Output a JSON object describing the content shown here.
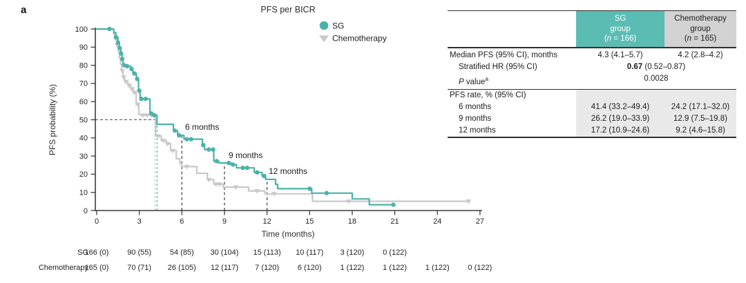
{
  "panel_label": "a",
  "chart_data": {
    "type": "km_step",
    "title": "PFS per BICR",
    "xlabel": "Time (months)",
    "ylabel": "PFS probability (%)",
    "xlim": [
      0,
      27
    ],
    "ylim": [
      0,
      100
    ],
    "xticks": [
      0,
      3,
      6,
      9,
      12,
      15,
      18,
      21,
      24,
      27
    ],
    "yticks": [
      0,
      10,
      20,
      30,
      40,
      50,
      60,
      70,
      80,
      90,
      100
    ],
    "grid": false,
    "legend_position": "top-right",
    "legend": [
      {
        "label": "SG",
        "marker": "circle",
        "color": "#4BB2A9"
      },
      {
        "label": "Chemotherapy",
        "marker": "triangle-down",
        "color": "#C6C6C6"
      }
    ],
    "median_pfs_months": {
      "SG": 4.3,
      "Chemotherapy": 4.2
    },
    "reference": {
      "h50_y": 50,
      "median_lines": [
        {
          "t": 4.1,
          "color": "#BFCFCC"
        },
        {
          "t": 4.25,
          "color": "#4BB2A9"
        }
      ],
      "month_lines": [
        {
          "t": 6,
          "top": 41.4,
          "label": "6 months"
        },
        {
          "t": 9,
          "top": 26.2,
          "label": "9 months"
        },
        {
          "t": 12,
          "top": 17.2,
          "label": "12 months"
        }
      ]
    },
    "series": [
      {
        "name": "Chemotherapy",
        "color": "#C9C9C9",
        "marker": "triangle-down",
        "steps": [
          [
            0,
            100
          ],
          [
            1.2,
            97
          ],
          [
            1.3,
            94
          ],
          [
            1.42,
            91
          ],
          [
            1.52,
            87.5
          ],
          [
            1.6,
            84
          ],
          [
            1.68,
            80.5
          ],
          [
            1.75,
            77
          ],
          [
            1.85,
            73.5
          ],
          [
            1.97,
            71
          ],
          [
            2.2,
            69
          ],
          [
            2.4,
            67
          ],
          [
            2.58,
            65
          ],
          [
            2.78,
            58.5
          ],
          [
            2.97,
            53
          ],
          [
            3.1,
            52.5
          ],
          [
            4.15,
            41
          ],
          [
            4.55,
            38.5
          ],
          [
            4.9,
            36.8
          ],
          [
            5.2,
            33
          ],
          [
            5.6,
            28.5
          ],
          [
            5.85,
            26
          ],
          [
            5.97,
            24.2
          ],
          [
            7.05,
            20.5
          ],
          [
            7.8,
            17
          ],
          [
            8.25,
            14.5
          ],
          [
            8.9,
            12.9
          ],
          [
            10.7,
            10.8
          ],
          [
            11.85,
            9.2
          ],
          [
            15.2,
            5.1
          ],
          [
            26.2,
            5.1
          ]
        ],
        "censors": [
          [
            1.45,
            91
          ],
          [
            1.8,
            77
          ],
          [
            1.9,
            73.5
          ],
          [
            2.05,
            71
          ],
          [
            2.28,
            69
          ],
          [
            2.48,
            67
          ],
          [
            2.65,
            65
          ],
          [
            2.9,
            58.5
          ],
          [
            3.25,
            52.5
          ],
          [
            3.55,
            52.5
          ],
          [
            3.85,
            52.5
          ],
          [
            4.05,
            52.5
          ],
          [
            4.35,
            41
          ],
          [
            4.7,
            38.5
          ],
          [
            5.0,
            36.8
          ],
          [
            5.35,
            33
          ],
          [
            6.35,
            24.2
          ],
          [
            7.9,
            17
          ],
          [
            8.4,
            14.5
          ],
          [
            8.65,
            14.5
          ],
          [
            9.8,
            12.9
          ],
          [
            11.3,
            10.8
          ],
          [
            12.5,
            9.2
          ],
          [
            17.75,
            5.1
          ],
          [
            26.2,
            5.1
          ]
        ]
      },
      {
        "name": "SG",
        "color": "#4BB2A9",
        "marker": "circle",
        "steps": [
          [
            0,
            100
          ],
          [
            1.2,
            98
          ],
          [
            1.35,
            95.5
          ],
          [
            1.5,
            92.5
          ],
          [
            1.6,
            89.5
          ],
          [
            1.7,
            86.5
          ],
          [
            1.78,
            83.5
          ],
          [
            1.85,
            80
          ],
          [
            2.05,
            79.5
          ],
          [
            2.4,
            78
          ],
          [
            2.55,
            75.5
          ],
          [
            2.8,
            72.5
          ],
          [
            2.95,
            66
          ],
          [
            3.05,
            61.5
          ],
          [
            3.75,
            53.5
          ],
          [
            3.9,
            52.5
          ],
          [
            4.25,
            47.5
          ],
          [
            5.4,
            44
          ],
          [
            5.7,
            41.4
          ],
          [
            6.15,
            39.3
          ],
          [
            7.45,
            36.1
          ],
          [
            7.6,
            33.6
          ],
          [
            8.25,
            27.2
          ],
          [
            8.6,
            26.2
          ],
          [
            9.45,
            25.3
          ],
          [
            9.85,
            23.5
          ],
          [
            11.1,
            21
          ],
          [
            11.65,
            19
          ],
          [
            11.9,
            17.2
          ],
          [
            12.6,
            14.5
          ],
          [
            12.75,
            12
          ],
          [
            15.15,
            9.6
          ],
          [
            18.0,
            6.4
          ],
          [
            19.2,
            3.2
          ],
          [
            21.0,
            3.2
          ]
        ],
        "censors": [
          [
            0.9,
            100
          ],
          [
            1.35,
            95.5
          ],
          [
            1.5,
            92.5
          ],
          [
            1.62,
            89.5
          ],
          [
            1.72,
            86.5
          ],
          [
            1.8,
            83.5
          ],
          [
            1.95,
            80
          ],
          [
            2.15,
            79.5
          ],
          [
            2.45,
            78
          ],
          [
            2.65,
            75.5
          ],
          [
            2.85,
            72.5
          ],
          [
            3.0,
            66
          ],
          [
            3.15,
            61.5
          ],
          [
            3.45,
            61.5
          ],
          [
            3.85,
            53.5
          ],
          [
            4.05,
            52.5
          ],
          [
            5.5,
            44
          ],
          [
            5.8,
            41.4
          ],
          [
            6.35,
            39.3
          ],
          [
            6.65,
            39.3
          ],
          [
            7.5,
            36.1
          ],
          [
            7.9,
            33.6
          ],
          [
            8.2,
            33.6
          ],
          [
            8.45,
            27.2
          ],
          [
            9.3,
            26.2
          ],
          [
            9.6,
            25.3
          ],
          [
            10.3,
            23.5
          ],
          [
            10.6,
            23.5
          ],
          [
            11.3,
            21
          ],
          [
            11.8,
            19
          ],
          [
            15.0,
            12
          ],
          [
            16.2,
            9.6
          ],
          [
            20.9,
            3.2
          ]
        ]
      }
    ],
    "at_risk": {
      "rows": [
        {
          "label": "SG",
          "values": [
            "166 (0)",
            "90 (55)",
            "54 (85)",
            "30 (104)",
            "15 (113)",
            "10 (117)",
            "3 (120)",
            "0 (122)"
          ]
        },
        {
          "label": "Chemotherapy",
          "values": [
            "165 (0)",
            "70 (71)",
            "26 (105)",
            "12 (117)",
            "7 (120)",
            "6 (120)",
            "1 (122)",
            "1 (122)",
            "1 (122)",
            "0 (122)"
          ]
        }
      ]
    }
  },
  "stats_table": {
    "colors": {
      "sg_header_bg": "#5BBCB4",
      "chemo_header_bg": "#D2D2D2",
      "shade_bg": "#E9E9E9"
    },
    "headers": {
      "sg": {
        "line1": "SG",
        "line2": "group",
        "n_open": "(",
        "n_italic": "n",
        "n_rest": " = 166)"
      },
      "chemo": {
        "line1": "Chemotherapy",
        "line2": "group",
        "n_open": "(",
        "n_italic": "n",
        "n_rest": " = 165)"
      }
    },
    "median_row": {
      "label": "Median PFS (95% CI), months",
      "sg": "4.3 (4.1–5.7)",
      "chemo": "4.2 (2.8–4.2)"
    },
    "hr_row": {
      "label": "Stratified HR (95% CI)",
      "bold": "0.67",
      "rest": " (0.52–0.87)"
    },
    "p_row": {
      "p_italic": "P",
      "p_rest": " value",
      "sup": "a",
      "value": "0.0028"
    },
    "rate_header": {
      "label": "PFS rate, % (95% CI)"
    },
    "rate_rows": [
      {
        "label": "6 months",
        "sg": "41.4 (33.2–49.4)",
        "chemo": "24.2 (17.1–32.0)"
      },
      {
        "label": "9 months",
        "sg": "26.2 (19.0–33.9)",
        "chemo": "12.9 (7.5–19.8)"
      },
      {
        "label": "12 months",
        "sg": "17.2 (10.9–24.6)",
        "chemo": "9.2 (4.6–15.8)"
      }
    ]
  }
}
